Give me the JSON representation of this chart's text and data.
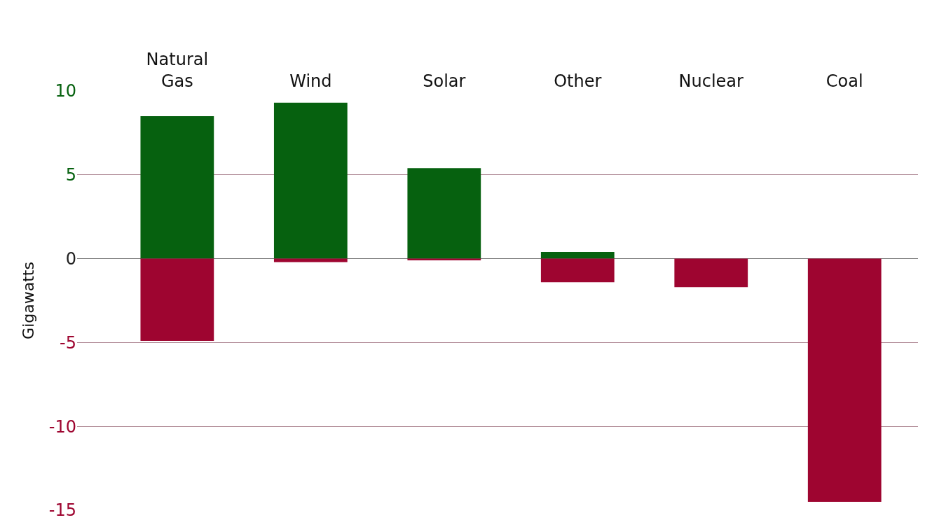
{
  "chart_data": {
    "type": "bar",
    "stacked": true,
    "ylabel": "Gigawatts",
    "categories": [
      "Natural\nGas",
      "Wind",
      "Solar",
      "Other",
      "Nuclear",
      "Coal"
    ],
    "series": [
      {
        "color": "#06610f",
        "values": [
          8.5,
          9.3,
          5.4,
          0.4,
          null,
          null
        ]
      },
      {
        "color": "#9e0530",
        "values": [
          -4.9,
          -0.2,
          -0.1,
          -1.4,
          -1.7,
          -14.5
        ]
      }
    ],
    "ylim": [
      -15,
      10
    ],
    "yticks": [
      -15,
      -10,
      -5,
      0,
      5,
      10
    ],
    "grid": "y"
  }
}
